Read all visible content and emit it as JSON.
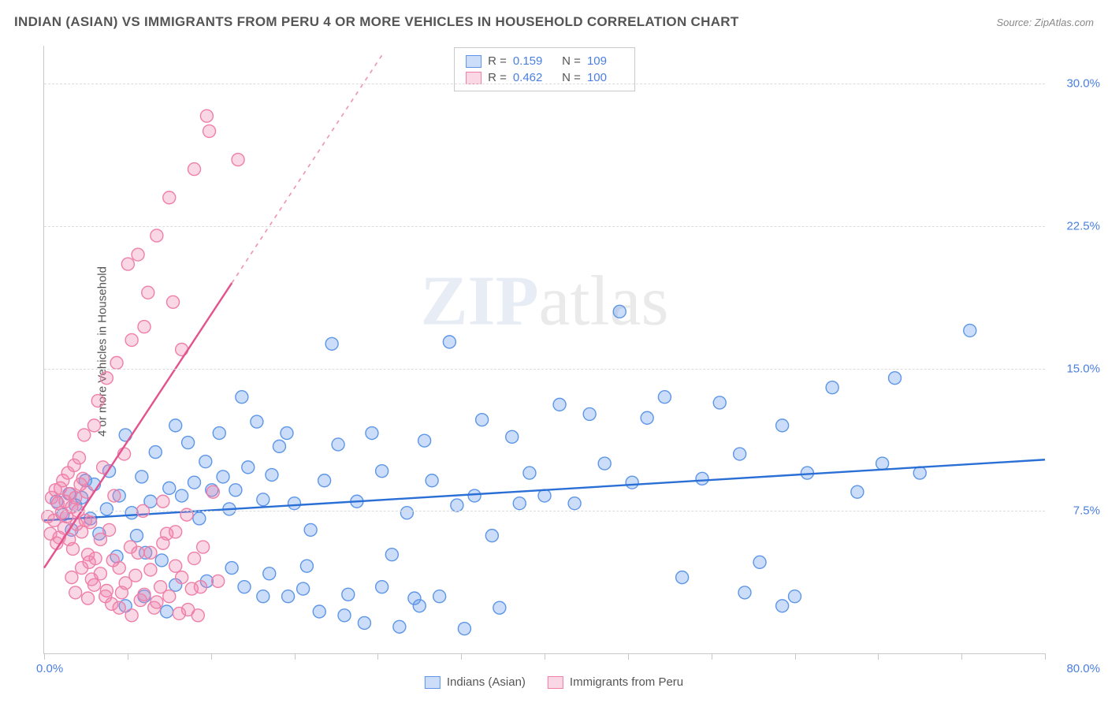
{
  "title": "INDIAN (ASIAN) VS IMMIGRANTS FROM PERU 4 OR MORE VEHICLES IN HOUSEHOLD CORRELATION CHART",
  "source": "Source: ZipAtlas.com",
  "y_axis_title": "4 or more Vehicles in Household",
  "watermark_bold": "ZIP",
  "watermark_rest": "atlas",
  "chart": {
    "type": "scatter",
    "background_color": "#ffffff",
    "grid_color": "#dcdcdc",
    "axis_color": "#c8c8c8",
    "text_color": "#555555",
    "value_color": "#4a7fe0",
    "xlim": [
      0,
      80
    ],
    "ylim": [
      0,
      32
    ],
    "x_origin_label": "0.0%",
    "x_max_label": "80.0%",
    "x_ticks": [
      0,
      6.67,
      13.33,
      20,
      26.67,
      33.33,
      40,
      46.67,
      53.33,
      60,
      66.67,
      73.33,
      80
    ],
    "y_ticks": [
      {
        "v": 7.5,
        "label": "7.5%"
      },
      {
        "v": 15.0,
        "label": "15.0%"
      },
      {
        "v": 22.5,
        "label": "22.5%"
      },
      {
        "v": 30.0,
        "label": "30.0%"
      }
    ],
    "marker_radius": 8,
    "marker_stroke_width": 1.4,
    "line_width": 2.4,
    "series": [
      {
        "name": "Indians (Asian)",
        "fill": "rgba(93,150,232,0.32)",
        "stroke": "#5d96e8",
        "line_color": "#2a6fd6",
        "R": "0.159",
        "N": "109",
        "trend": {
          "x1": 0,
          "y1": 7.0,
          "x2": 80,
          "y2": 10.2,
          "dashed_from_x": null
        },
        "points": [
          [
            1,
            8
          ],
          [
            1.5,
            7.3
          ],
          [
            2,
            8.4
          ],
          [
            2.2,
            6.5
          ],
          [
            2.5,
            7.8
          ],
          [
            3,
            8.2
          ],
          [
            3.3,
            9.1
          ],
          [
            3.7,
            7.1
          ],
          [
            4,
            8.9
          ],
          [
            4.4,
            6.3
          ],
          [
            5,
            7.6
          ],
          [
            5.2,
            9.6
          ],
          [
            5.8,
            5.1
          ],
          [
            6,
            8.3
          ],
          [
            6.5,
            11.5
          ],
          [
            7,
            7.4
          ],
          [
            7.4,
            6.2
          ],
          [
            7.8,
            9.3
          ],
          [
            8.1,
            5.3
          ],
          [
            8.5,
            8.0
          ],
          [
            8.9,
            10.6
          ],
          [
            9.4,
            4.9
          ],
          [
            9.8,
            2.2
          ],
          [
            10,
            8.7
          ],
          [
            10.5,
            12.0
          ],
          [
            11,
            8.3
          ],
          [
            11.5,
            11.1
          ],
          [
            12,
            9.0
          ],
          [
            12.4,
            7.1
          ],
          [
            12.9,
            10.1
          ],
          [
            13.4,
            8.6
          ],
          [
            14,
            11.6
          ],
          [
            14.3,
            9.3
          ],
          [
            14.8,
            7.6
          ],
          [
            15.3,
            8.6
          ],
          [
            15.8,
            13.5
          ],
          [
            16.3,
            9.8
          ],
          [
            17,
            12.2
          ],
          [
            17.5,
            8.1
          ],
          [
            18.2,
            9.4
          ],
          [
            18.8,
            10.9
          ],
          [
            19.4,
            11.6
          ],
          [
            20,
            7.9
          ],
          [
            20.7,
            3.4
          ],
          [
            21.3,
            6.5
          ],
          [
            22,
            2.2
          ],
          [
            22.4,
            9.1
          ],
          [
            23,
            16.3
          ],
          [
            23.5,
            11.0
          ],
          [
            24.3,
            3.1
          ],
          [
            25,
            8.0
          ],
          [
            25.6,
            1.6
          ],
          [
            26.2,
            11.6
          ],
          [
            27,
            9.6
          ],
          [
            27.8,
            5.2
          ],
          [
            28.4,
            1.4
          ],
          [
            29,
            7.4
          ],
          [
            29.6,
            2.9
          ],
          [
            30.4,
            11.2
          ],
          [
            31,
            9.1
          ],
          [
            31.6,
            3.0
          ],
          [
            32.4,
            16.4
          ],
          [
            33,
            7.8
          ],
          [
            33.6,
            1.3
          ],
          [
            34.4,
            8.3
          ],
          [
            35,
            12.3
          ],
          [
            35.8,
            6.2
          ],
          [
            36.4,
            2.4
          ],
          [
            37.4,
            11.4
          ],
          [
            38,
            7.9
          ],
          [
            38.8,
            9.5
          ],
          [
            40,
            8.3
          ],
          [
            41.2,
            13.1
          ],
          [
            42.4,
            7.9
          ],
          [
            43.6,
            12.6
          ],
          [
            44.8,
            10.0
          ],
          [
            46,
            18.0
          ],
          [
            47,
            9.0
          ],
          [
            48.2,
            12.4
          ],
          [
            49.6,
            13.5
          ],
          [
            51,
            4.0
          ],
          [
            52.6,
            9.2
          ],
          [
            54,
            13.2
          ],
          [
            55.6,
            10.5
          ],
          [
            57.2,
            4.8
          ],
          [
            59,
            12.0
          ],
          [
            61,
            9.5
          ],
          [
            63,
            14.0
          ],
          [
            65,
            8.5
          ],
          [
            67,
            10.0
          ],
          [
            68,
            14.5
          ],
          [
            70,
            9.5
          ],
          [
            74,
            17.0
          ],
          [
            16,
            3.5
          ],
          [
            18,
            4.2
          ],
          [
            19.5,
            3.0
          ],
          [
            21,
            4.6
          ],
          [
            24,
            2.0
          ],
          [
            27,
            3.5
          ],
          [
            30,
            2.5
          ],
          [
            10.5,
            3.6
          ],
          [
            13,
            3.8
          ],
          [
            15,
            4.5
          ],
          [
            17.5,
            3.0
          ],
          [
            56,
            3.2
          ],
          [
            60,
            3.0
          ],
          [
            6.5,
            2.5
          ],
          [
            8,
            3.0
          ],
          [
            59,
            2.5
          ]
        ]
      },
      {
        "name": "Immigrants from Peru",
        "fill": "rgba(240,130,170,0.32)",
        "stroke": "#ef7fa8",
        "line_color": "#e4528d",
        "R": "0.462",
        "N": "100",
        "trend": {
          "x1": 0,
          "y1": 4.5,
          "x2": 27,
          "y2": 31.5,
          "solid_until_x": 15
        },
        "points": [
          [
            0.3,
            7.2
          ],
          [
            0.5,
            6.3
          ],
          [
            0.6,
            8.2
          ],
          [
            0.8,
            7.0
          ],
          [
            0.9,
            8.6
          ],
          [
            1.0,
            5.8
          ],
          [
            1.1,
            7.9
          ],
          [
            1.2,
            6.1
          ],
          [
            1.3,
            8.7
          ],
          [
            1.4,
            7.4
          ],
          [
            1.5,
            9.1
          ],
          [
            1.6,
            6.6
          ],
          [
            1.7,
            8.0
          ],
          [
            1.8,
            7.2
          ],
          [
            1.9,
            9.5
          ],
          [
            2.0,
            6.0
          ],
          [
            2.1,
            8.4
          ],
          [
            2.2,
            7.7
          ],
          [
            2.3,
            5.5
          ],
          [
            2.4,
            9.9
          ],
          [
            2.5,
            8.2
          ],
          [
            2.6,
            6.8
          ],
          [
            2.7,
            7.5
          ],
          [
            2.8,
            10.3
          ],
          [
            2.9,
            8.9
          ],
          [
            3.0,
            6.4
          ],
          [
            3.1,
            9.2
          ],
          [
            3.2,
            11.5
          ],
          [
            3.3,
            7.0
          ],
          [
            3.4,
            8.5
          ],
          [
            3.5,
            5.2
          ],
          [
            3.6,
            4.8
          ],
          [
            3.7,
            6.9
          ],
          [
            3.8,
            3.9
          ],
          [
            4.0,
            12.0
          ],
          [
            4.1,
            5.0
          ],
          [
            4.3,
            13.3
          ],
          [
            4.5,
            4.2
          ],
          [
            4.7,
            9.8
          ],
          [
            4.9,
            3.0
          ],
          [
            5.0,
            14.5
          ],
          [
            5.2,
            6.5
          ],
          [
            5.4,
            2.6
          ],
          [
            5.6,
            8.3
          ],
          [
            5.8,
            15.3
          ],
          [
            6.0,
            4.5
          ],
          [
            6.2,
            3.2
          ],
          [
            6.4,
            10.5
          ],
          [
            6.7,
            20.5
          ],
          [
            6.9,
            5.6
          ],
          [
            7.0,
            16.5
          ],
          [
            7.3,
            4.1
          ],
          [
            7.5,
            21.0
          ],
          [
            7.7,
            2.8
          ],
          [
            7.9,
            7.5
          ],
          [
            8.0,
            17.2
          ],
          [
            8.3,
            19.0
          ],
          [
            8.5,
            5.3
          ],
          [
            8.8,
            2.4
          ],
          [
            9.0,
            22.0
          ],
          [
            9.3,
            3.5
          ],
          [
            9.5,
            8.0
          ],
          [
            9.8,
            6.3
          ],
          [
            10.0,
            24.0
          ],
          [
            10.3,
            18.5
          ],
          [
            10.5,
            4.6
          ],
          [
            10.8,
            2.1
          ],
          [
            11.0,
            16.0
          ],
          [
            11.4,
            7.3
          ],
          [
            11.8,
            3.4
          ],
          [
            12,
            25.5
          ],
          [
            12.3,
            2.0
          ],
          [
            12.7,
            5.6
          ],
          [
            13,
            28.3
          ],
          [
            13.2,
            27.5
          ],
          [
            13.5,
            8.5
          ],
          [
            13.9,
            3.8
          ],
          [
            15.5,
            26.0
          ],
          [
            2.2,
            4.0
          ],
          [
            2.5,
            3.2
          ],
          [
            3.0,
            4.5
          ],
          [
            3.5,
            2.9
          ],
          [
            4.0,
            3.6
          ],
          [
            4.5,
            6.0
          ],
          [
            5.0,
            3.3
          ],
          [
            5.5,
            4.9
          ],
          [
            6.0,
            2.4
          ],
          [
            6.5,
            3.7
          ],
          [
            7.0,
            2.0
          ],
          [
            7.5,
            5.3
          ],
          [
            8.0,
            3.1
          ],
          [
            8.5,
            4.4
          ],
          [
            9.0,
            2.7
          ],
          [
            9.5,
            5.8
          ],
          [
            10.0,
            3.0
          ],
          [
            10.5,
            6.4
          ],
          [
            11.0,
            4.0
          ],
          [
            11.5,
            2.3
          ],
          [
            12.0,
            5.0
          ],
          [
            12.5,
            3.5
          ]
        ]
      }
    ]
  },
  "stats_legend": {
    "title_fontsize": 15
  },
  "bottom_legend_label_1": "Indians (Asian)",
  "bottom_legend_label_2": "Immigrants from Peru"
}
